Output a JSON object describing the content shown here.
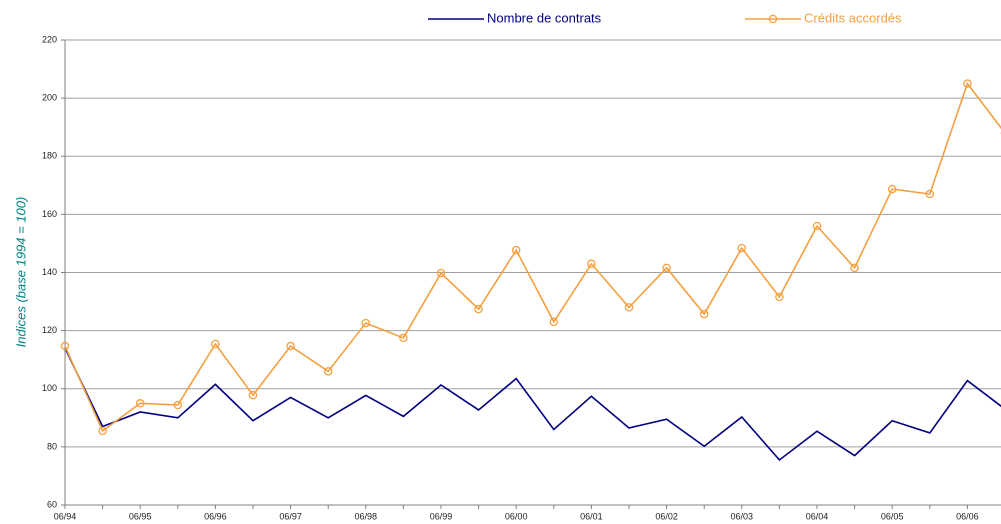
{
  "chart_data": {
    "type": "line",
    "y_label": "Indices (base 1994 = 100)",
    "categories": [
      "06/94",
      null,
      "06/95",
      null,
      "06/96",
      null,
      "06/97",
      null,
      "06/98",
      null,
      "06/99",
      null,
      "06/00",
      null,
      "06/01",
      null,
      "06/02",
      null,
      "06/03",
      null,
      "06/04",
      null,
      "06/05",
      null,
      "06/06",
      null
    ],
    "series": [
      {
        "name": "Nombre de contrats",
        "color": "#000080",
        "marker": false,
        "values": [
          114,
          87,
          92,
          90,
          101.5,
          89,
          97,
          90,
          97.7,
          90.5,
          101.3,
          92.7,
          103.5,
          86,
          97.4,
          86.5,
          89.5,
          80.2,
          90.3,
          75.5,
          85.4,
          77,
          89,
          84.8,
          102.8,
          93
        ]
      },
      {
        "name": "Crédits accordés",
        "color": "#f5a040",
        "marker": true,
        "values": [
          114.7,
          85.5,
          95,
          94.4,
          115.4,
          97.8,
          114.7,
          106,
          122.6,
          117.5,
          139.8,
          127.4,
          147.7,
          123,
          143,
          128,
          141.6,
          125.7,
          148.4,
          131.6,
          156,
          141.6,
          168.7,
          167,
          205,
          188
        ]
      }
    ],
    "ylim": [
      60,
      220
    ],
    "yticks": [
      60,
      80,
      100,
      120,
      140,
      160,
      180,
      200,
      220
    ],
    "grid": true
  }
}
